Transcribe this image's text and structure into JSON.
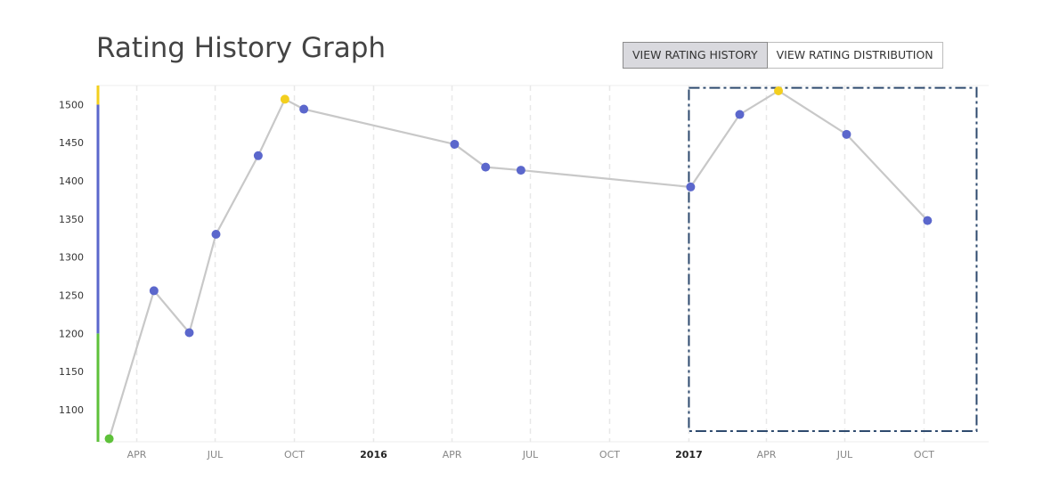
{
  "header": {
    "title": "Rating History Graph",
    "btn_history": "VIEW RATING HISTORY",
    "btn_distribution": "VIEW RATING DISTRIBUTION"
  },
  "colors": {
    "line": "#c8c8c8",
    "point": "#5b67cc",
    "peak": "#f3cf1e",
    "start": "#5ec13a",
    "band_green": "#5ec13a",
    "band_blue": "#5b67cc",
    "band_yellow": "#f3cf1e",
    "highlight_box": "#2e4a6e",
    "grid": "#e8e8e8"
  },
  "chart_data": {
    "type": "line",
    "title": "Rating History Graph",
    "xlabel": "",
    "ylabel": "",
    "ylim": [
      1058,
      1525
    ],
    "yticks": [
      1100,
      1150,
      1200,
      1250,
      1300,
      1350,
      1400,
      1450,
      1500
    ],
    "xlim": [
      "2015-02-15",
      "2017-12-15"
    ],
    "xticks": [
      {
        "date": "2015-04-01",
        "label": "APR",
        "year": false
      },
      {
        "date": "2015-07-01",
        "label": "JUL",
        "year": false
      },
      {
        "date": "2015-10-01",
        "label": "OCT",
        "year": false
      },
      {
        "date": "2016-01-01",
        "label": "2016",
        "year": true
      },
      {
        "date": "2016-04-01",
        "label": "APR",
        "year": false
      },
      {
        "date": "2016-07-01",
        "label": "JUL",
        "year": false
      },
      {
        "date": "2016-10-01",
        "label": "OCT",
        "year": false
      },
      {
        "date": "2017-01-01",
        "label": "2017",
        "year": true
      },
      {
        "date": "2017-04-01",
        "label": "APR",
        "year": false
      },
      {
        "date": "2017-07-01",
        "label": "JUL",
        "year": false
      },
      {
        "date": "2017-10-01",
        "label": "OCT",
        "year": false
      }
    ],
    "bands": [
      {
        "from": 1058,
        "to": 1200,
        "color": "#5ec13a"
      },
      {
        "from": 1200,
        "to": 1500,
        "color": "#5b67cc"
      },
      {
        "from": 1500,
        "to": 1525,
        "color": "#f3cf1e"
      }
    ],
    "series": [
      {
        "points": [
          {
            "x": "2015-02-28",
            "y": 1062,
            "marker": "start"
          },
          {
            "x": "2015-04-21",
            "y": 1256
          },
          {
            "x": "2015-06-01",
            "y": 1201
          },
          {
            "x": "2015-07-02",
            "y": 1330
          },
          {
            "x": "2015-08-20",
            "y": 1433
          },
          {
            "x": "2015-09-20",
            "y": 1507,
            "marker": "peak"
          },
          {
            "x": "2015-10-12",
            "y": 1494
          },
          {
            "x": "2016-04-04",
            "y": 1448
          },
          {
            "x": "2016-05-10",
            "y": 1418
          },
          {
            "x": "2016-06-20",
            "y": 1414
          },
          {
            "x": "2017-01-03",
            "y": 1392
          },
          {
            "x": "2017-03-01",
            "y": 1487
          },
          {
            "x": "2017-04-15",
            "y": 1518,
            "marker": "peak"
          },
          {
            "x": "2017-07-03",
            "y": 1461
          },
          {
            "x": "2017-10-05",
            "y": 1348
          }
        ]
      }
    ],
    "highlight_box": {
      "x_from": "2017-01-01",
      "x_to": "2017-12-01",
      "y_from": 1072,
      "y_to": 1522
    },
    "grid": {
      "vertical": true,
      "horizontal": false
    }
  }
}
